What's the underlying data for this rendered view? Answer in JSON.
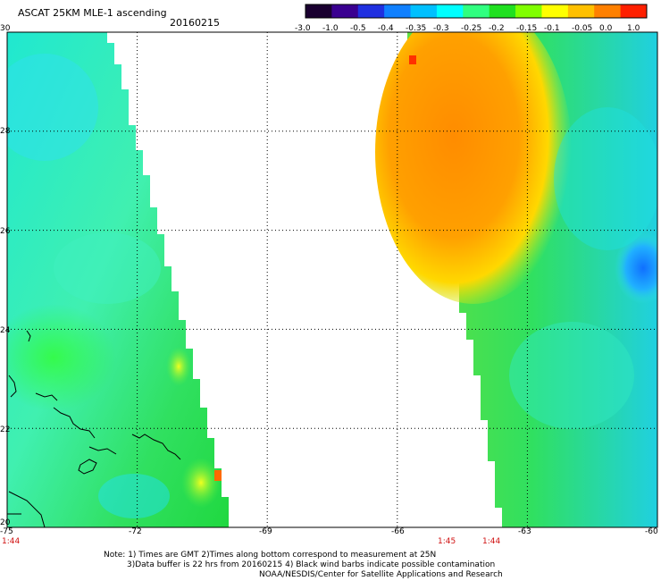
{
  "header": {
    "title": "ASCAT 25KM MLE-1 ascending",
    "date": "20160215"
  },
  "colorbar": {
    "labels": [
      "-3.0",
      "-1.0",
      "-0.5",
      "-0.4",
      "-0.35",
      "-0.3",
      "-0.25",
      "-0.2",
      "-0.15",
      "-0.1",
      "-0.05",
      "0.0",
      "1.0"
    ],
    "colors": [
      "#1a0030",
      "#3a0090",
      "#2030e0",
      "#1080ff",
      "#00c0ff",
      "#00ffff",
      "#30ff80",
      "#20e020",
      "#80ff00",
      "#ffff00",
      "#ffc000",
      "#ff8000",
      "#ff2000"
    ]
  },
  "map": {
    "lon_range": [
      -75,
      -60
    ],
    "lat_range": [
      20,
      30
    ],
    "lon_ticks": [
      "-75",
      "-72",
      "-69",
      "-66",
      "-63",
      "-60"
    ],
    "lat_ticks": [
      "30",
      "28",
      "26",
      "24",
      "22",
      "20"
    ],
    "time_labels": [
      "1:44",
      "1:45",
      "1:44"
    ]
  },
  "notes": {
    "line1": "Note: 1) Times are GMT 2)Times along bottom correspond to measurement at 25N",
    "line2": "3)Data buffer is 22 hrs from 20160215 4) Black wind barbs indicate possible contamination",
    "line3": "NOAA/NESDIS/Center for Satellite Applications and Research"
  }
}
